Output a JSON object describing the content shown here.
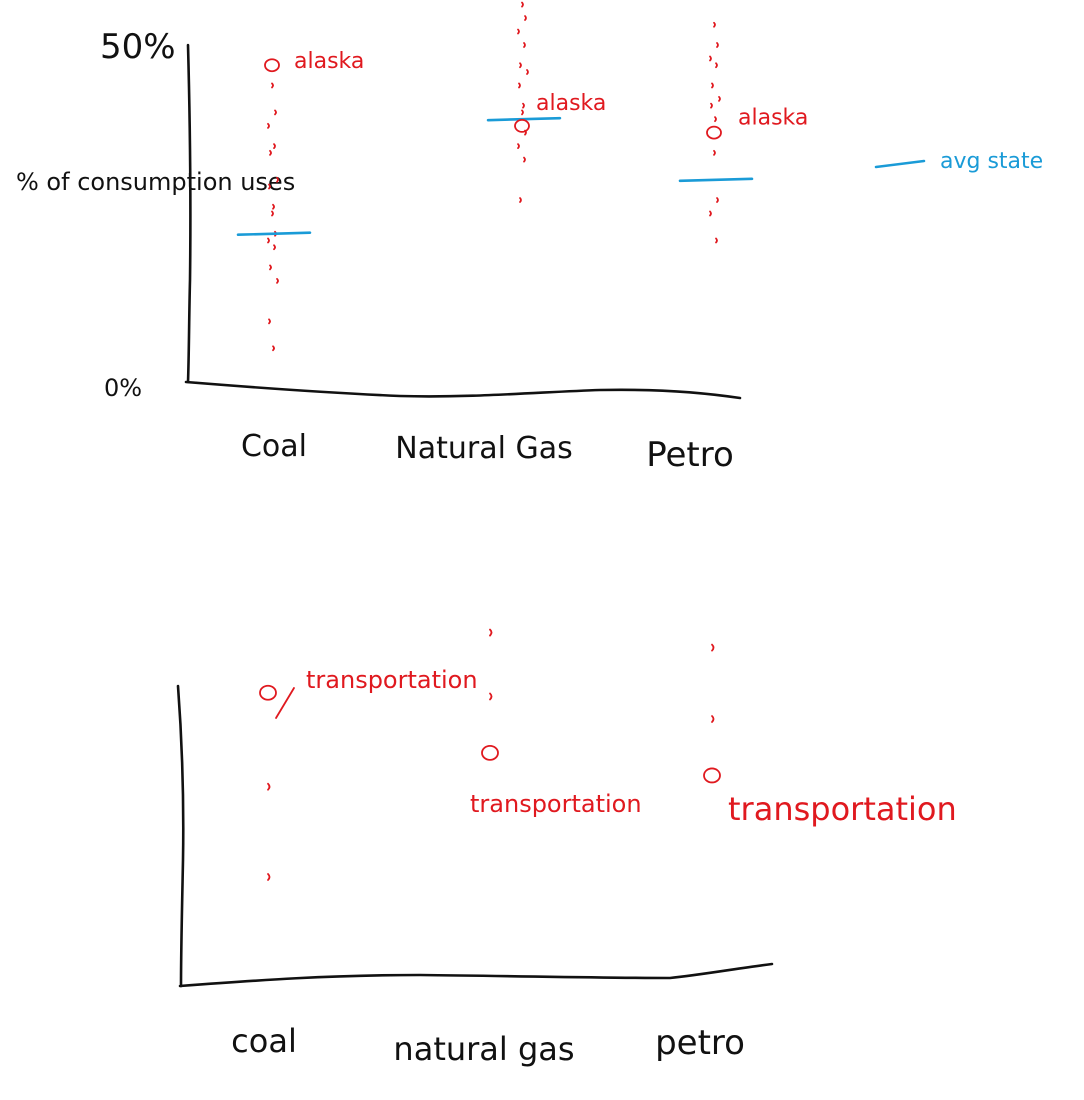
{
  "colors": {
    "ink": "#111111",
    "highlight": "#e0191f",
    "average": "#1a9bd7"
  },
  "chart_data": [
    {
      "type": "scatter",
      "title": "",
      "ylabel": "% of consumption uses",
      "xlabel": "",
      "ylim": [
        0,
        50
      ],
      "ytick_labels": [
        "50%",
        "0%"
      ],
      "categories": [
        "Coal",
        "Natural Gas",
        "Petro"
      ],
      "series": [
        {
          "name": "alaska",
          "values": [
            47,
            38,
            37
          ]
        },
        {
          "name": "avg state",
          "values": [
            22,
            39,
            30
          ]
        }
      ],
      "other_states": [
        [
          44,
          40,
          38,
          35,
          34,
          30,
          29,
          26,
          25,
          22,
          21,
          20,
          17,
          15,
          9,
          5
        ],
        [
          56,
          54,
          52,
          50,
          47,
          46,
          44,
          41,
          40,
          37,
          35,
          33,
          27
        ],
        [
          53,
          50,
          48,
          47,
          44,
          42,
          41,
          39,
          34,
          27,
          25,
          21
        ]
      ],
      "annotations": [
        "alaska",
        "alaska",
        "alaska"
      ],
      "legend": {
        "label": "avg state",
        "placement": "right"
      },
      "grid": false
    },
    {
      "type": "scatter",
      "title": "",
      "xlabel": "",
      "ylabel": "",
      "categories": [
        "coal",
        "natural gas",
        "petro"
      ],
      "series": [
        {
          "name": "transportation",
          "values": [
            78,
            62,
            56
          ]
        }
      ],
      "other_sectors": [
        [
          53,
          29
        ],
        [
          94,
          77
        ],
        [
          90,
          71
        ]
      ],
      "annotations": [
        "transportation",
        "transportation",
        "transportation"
      ],
      "grid": false
    }
  ]
}
